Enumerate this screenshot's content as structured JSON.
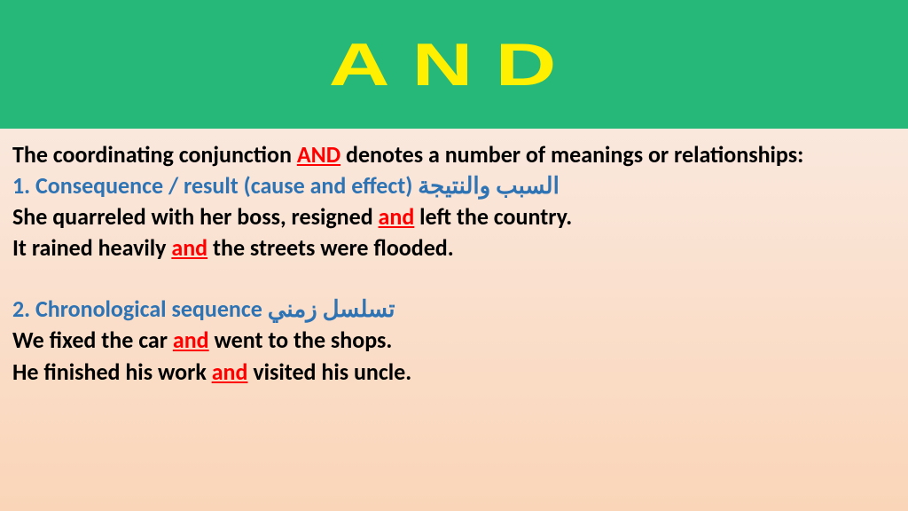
{
  "header": {
    "title": "AND",
    "bg_color": "#26b879",
    "title_color": "#ffef00",
    "title_fontsize": 68
  },
  "content": {
    "bg_gradient_from": "#fae8dd",
    "bg_gradient_to": "#fad5b8",
    "body_fontsize": 26,
    "text_color": "#000000",
    "blue_color": "#2e74b5",
    "red_color": "#ff0000",
    "intro_a": "The coordinating conjunction ",
    "intro_and": "AND",
    "intro_b": " denotes a number of meanings or relationships:",
    "sec1_en": "1. Consequence / result (cause and effect) ",
    "sec1_ar": "السبب والنتيجة",
    "ex1a_a": "She quarreled with her boss, resigned ",
    "ex1a_and": "and",
    "ex1a_b": " left the country.",
    "ex1b_a": "It rained heavily ",
    "ex1b_and": "and",
    "ex1b_b": " the streets were flooded.",
    "sec2_en": "2. Chronological sequence ",
    "sec2_ar": "تسلسل زمني",
    "ex2a_a": "We fixed the car ",
    "ex2a_and": "and",
    "ex2a_b": " went to the shops.",
    "ex2b_a": "He finished his work ",
    "ex2b_and": "and",
    "ex2b_b": " visited his uncle."
  }
}
